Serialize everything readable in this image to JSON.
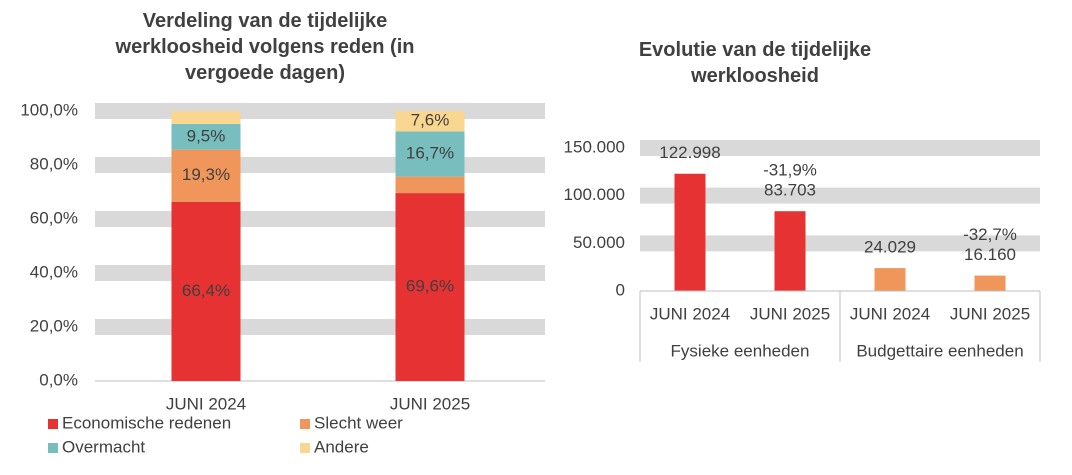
{
  "chart_data": [
    {
      "type": "stacked_bar",
      "title": "Verdeling van de tijdelijke werkloosheid volgens reden (in vergoede dagen)",
      "categories": [
        "JUNI 2024",
        "JUNI 2025"
      ],
      "series": [
        {
          "name": "Economische redenen",
          "color": "#e63232",
          "values": [
            66.4,
            69.6
          ],
          "value_labels": [
            "66,4%",
            "69,6%"
          ]
        },
        {
          "name": "Slecht weer",
          "color": "#f0965a",
          "values": [
            19.3,
            6.1
          ],
          "value_labels": [
            "19,3%",
            null
          ]
        },
        {
          "name": "Overmacht",
          "color": "#78bebe",
          "values": [
            9.5,
            16.7
          ],
          "value_labels": [
            "9,5%",
            "16,7%"
          ]
        },
        {
          "name": "Andere",
          "color": "#fad791",
          "values": [
            4.8,
            7.6
          ],
          "value_labels": [
            null,
            "7,6%"
          ]
        }
      ],
      "ylim": [
        0,
        100
      ],
      "yticks": [
        {
          "value": 0,
          "label": "0,0%"
        },
        {
          "value": 20,
          "label": "20,0%"
        },
        {
          "value": 40,
          "label": "40,0%"
        },
        {
          "value": 60,
          "label": "60,0%"
        },
        {
          "value": 80,
          "label": "80,0%"
        },
        {
          "value": 100,
          "label": "100,0%"
        }
      ],
      "grid": true
    },
    {
      "type": "bar",
      "title": "Evolutie van de tijdelijke werkloosheid",
      "categories": [
        "JUNI 2024",
        "JUNI 2025",
        "JUNI 2024",
        "JUNI 2025"
      ],
      "groups": [
        "Fysieke eenheden",
        "Budgettaire eenheden"
      ],
      "values": [
        122998,
        83703,
        24029,
        16160
      ],
      "value_labels": [
        "122.998",
        "83.703",
        "24.029",
        "16.160"
      ],
      "colors": [
        "#e63232",
        "#e63232",
        "#f0965a",
        "#f0965a"
      ],
      "annotations": [
        "-31,9%",
        "-32,7%"
      ],
      "ylim": [
        0,
        150000
      ],
      "yticks": [
        0,
        {
          "value": 50000,
          "label": "50.000"
        },
        {
          "value": 100000,
          "label": "100.000"
        },
        {
          "value": 150000,
          "label": "150.000"
        }
      ],
      "grid": true
    }
  ]
}
